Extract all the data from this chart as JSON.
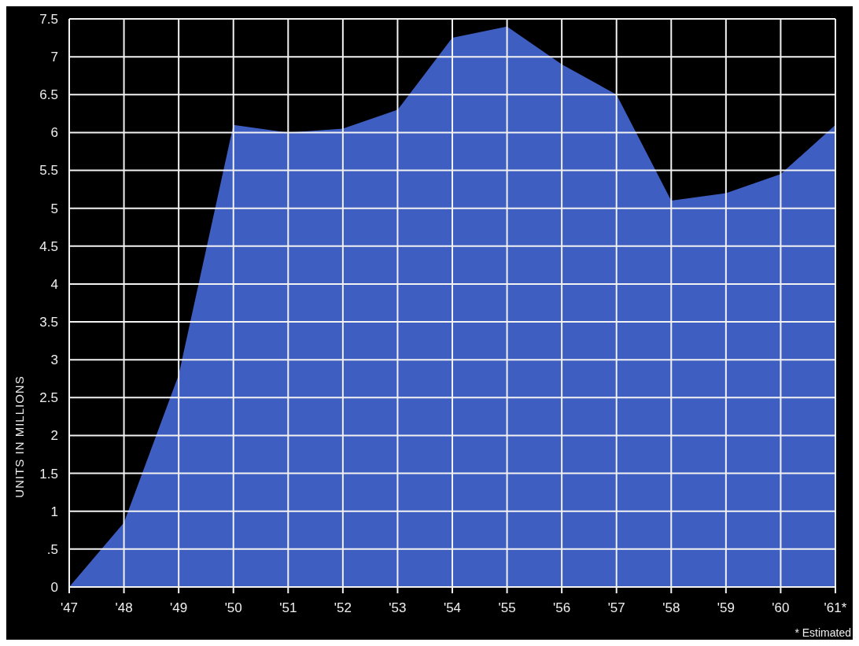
{
  "chart_data": {
    "type": "area",
    "ylabel": "UNITS IN MILLIONS",
    "categories": [
      "'47",
      "'48",
      "'49",
      "'50",
      "'51",
      "'52",
      "'53",
      "'54",
      "'55",
      "'56",
      "'57",
      "'58",
      "'59",
      "'60",
      "'61*"
    ],
    "series": [
      {
        "color": "#3f5ec2",
        "values": [
          0,
          0.85,
          2.8,
          6.1,
          6.0,
          6.05,
          6.3,
          7.25,
          7.4,
          6.9,
          6.5,
          5.1,
          5.2,
          5.45,
          6.1
        ]
      }
    ],
    "ylim": [
      0,
      7.5
    ],
    "yticks": [
      0,
      {
        "value": 0.5,
        "label": ".5"
      },
      1,
      1.5,
      2,
      2.5,
      3,
      3.5,
      4,
      4.5,
      5,
      5.5,
      6,
      6.5,
      7,
      7.5
    ],
    "grid": true,
    "annotations": [
      "* Estimated"
    ]
  }
}
